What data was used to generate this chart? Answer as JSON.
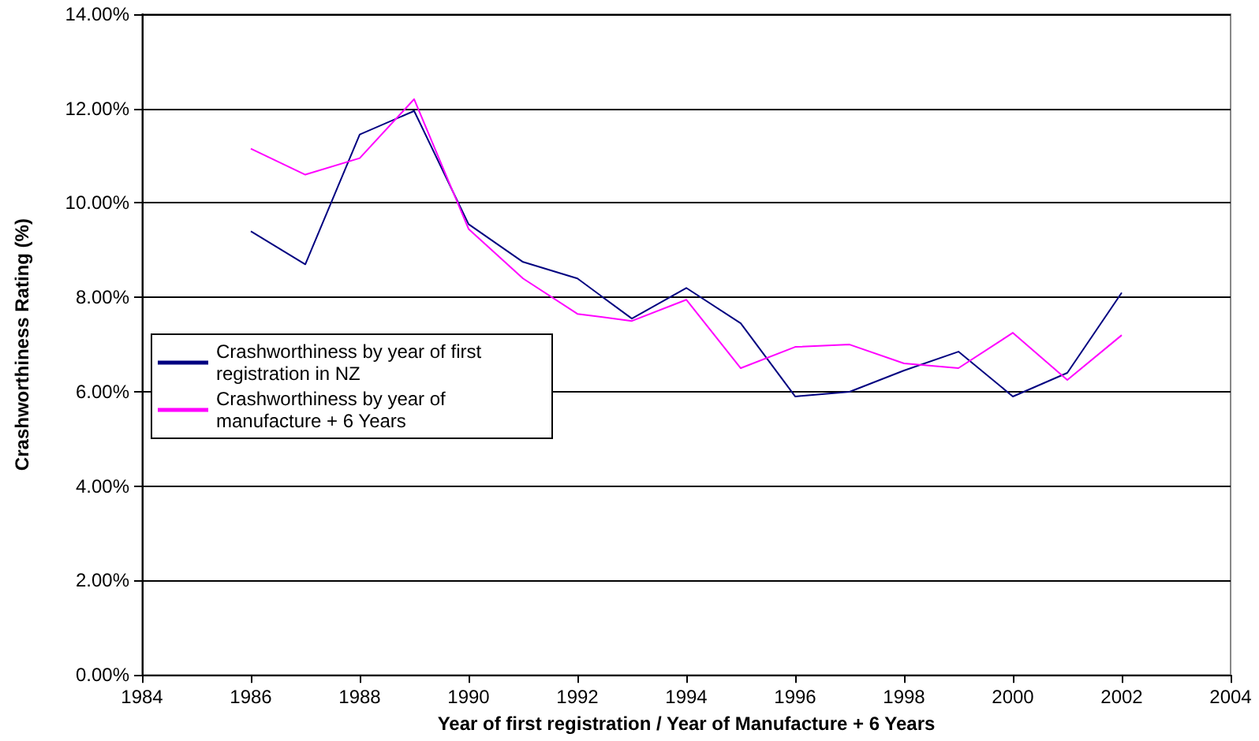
{
  "chart_data": {
    "type": "line",
    "xlabel": "Year of first registration / Year of Manufacture + 6 Years",
    "ylabel": "Crashworthiness Rating (%)",
    "x": [
      1986,
      1987,
      1988,
      1989,
      1990,
      1991,
      1992,
      1993,
      1994,
      1995,
      1996,
      1997,
      1998,
      1999,
      2000,
      2001,
      2002
    ],
    "series": [
      {
        "name": "Crashworthiness by year of first registration in NZ",
        "color": "#000080",
        "values": [
          9.4,
          8.7,
          11.45,
          11.95,
          9.55,
          8.75,
          8.4,
          7.55,
          8.2,
          7.45,
          5.9,
          6.0,
          6.45,
          6.85,
          5.9,
          6.4,
          8.1
        ]
      },
      {
        "name": "Crashworthiness by year of manufacture + 6 Years",
        "color": "#ff00ff",
        "values": [
          11.15,
          10.6,
          10.95,
          12.2,
          9.45,
          8.4,
          7.65,
          7.5,
          7.95,
          6.5,
          6.95,
          7.0,
          6.6,
          6.5,
          7.25,
          6.25,
          7.2
        ]
      }
    ],
    "xlim": [
      1984,
      2004
    ],
    "xticks": [
      1984,
      1986,
      1988,
      1990,
      1992,
      1994,
      1996,
      1998,
      2000,
      2002,
      2004
    ],
    "ylim": [
      0,
      14
    ],
    "yticks": [
      {
        "value": 0,
        "label": "0.00%"
      },
      {
        "value": 2,
        "label": "2.00%"
      },
      {
        "value": 4,
        "label": "4.00%"
      },
      {
        "value": 6,
        "label": "6.00%"
      },
      {
        "value": 8,
        "label": "8.00%"
      },
      {
        "value": 10,
        "label": "10.00%"
      },
      {
        "value": 12,
        "label": "12.00%"
      },
      {
        "value": 14,
        "label": "14.00%"
      }
    ],
    "grid": "y",
    "legend": "left",
    "marker": "none",
    "line_style": "solid"
  }
}
